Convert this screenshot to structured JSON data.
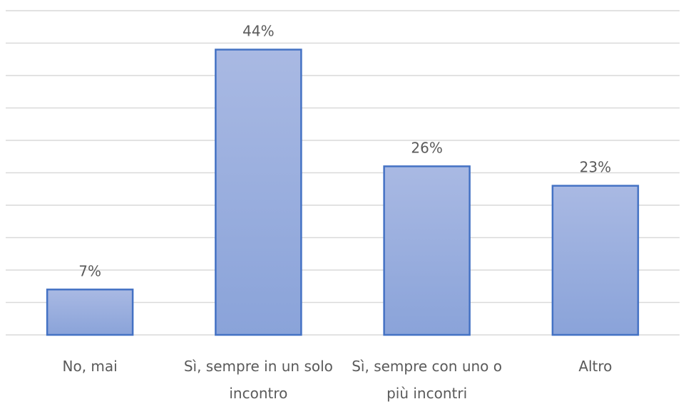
{
  "chart_data": {
    "type": "bar",
    "categories": [
      [
        "No, mai"
      ],
      [
        "Sì, sempre in un solo",
        "incontro"
      ],
      [
        "Sì, sempre con uno o",
        "più incontri"
      ],
      [
        "Altro"
      ]
    ],
    "values": [
      7,
      44,
      26,
      23
    ],
    "data_labels": [
      "7%",
      "44%",
      "26%",
      "23%"
    ],
    "value_suffix": "%",
    "ylim": [
      0,
      50
    ],
    "grid": true,
    "gridline_step": 5,
    "legend": "none",
    "colors": {
      "bar_fill_top": "#a9b9e3",
      "bar_fill_bottom": "#8aa3d9",
      "bar_stroke": "#4472c4",
      "grid": "#d9d9d9",
      "text": "#5a5a5a"
    }
  }
}
